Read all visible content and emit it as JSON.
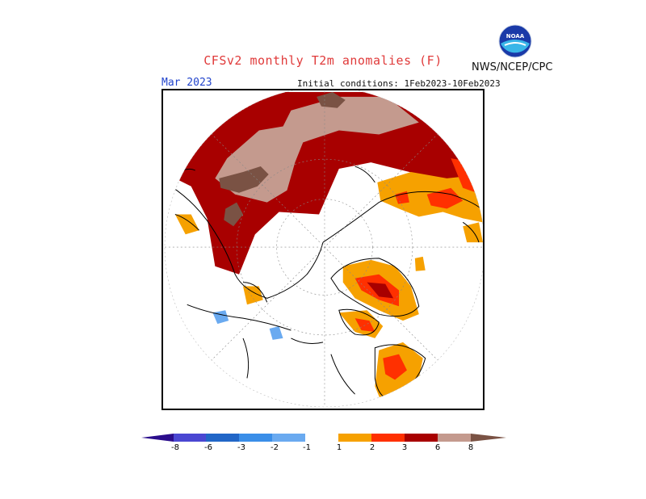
{
  "header": {
    "title": "CFSv2 monthly T2m anomalies (F)",
    "agency": "NWS/NCEP/CPC",
    "logo_text": "NOAA",
    "month": "Mar 2023",
    "initial_conditions": "Initial conditions: 1Feb2023-10Feb2023"
  },
  "map": {
    "projection": "north polar stereographic",
    "grid": true
  },
  "colorbar": {
    "ticks": [
      "-8",
      "-6",
      "-3",
      "-2",
      "-1",
      "1",
      "2",
      "3",
      "6",
      "8"
    ],
    "colors": [
      "#2b0d8c",
      "#4a47d2",
      "#2166c7",
      "#3a8ee8",
      "#6aaaf0",
      "#ffffff",
      "#f6a100",
      "#ff6a00",
      "#ff3000",
      "#a80000",
      "#c49a8e",
      "#7a5244"
    ]
  },
  "colors": {
    "title": "#e03a3a",
    "month": "#2244cc"
  }
}
